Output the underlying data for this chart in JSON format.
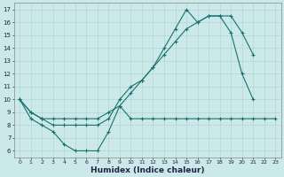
{
  "xlabel": "Humidex (Indice chaleur)",
  "xlim": [
    -0.5,
    23.5
  ],
  "ylim": [
    5.5,
    17.5
  ],
  "yticks": [
    6,
    7,
    8,
    9,
    10,
    11,
    12,
    13,
    14,
    15,
    16,
    17
  ],
  "xticks": [
    0,
    1,
    2,
    3,
    4,
    5,
    6,
    7,
    8,
    9,
    10,
    11,
    12,
    13,
    14,
    15,
    16,
    17,
    18,
    19,
    20,
    21,
    22,
    23
  ],
  "bg_color": "#cce9e9",
  "grid_color": "#aad0d0",
  "line_color": "#1a7070",
  "line1_x": [
    0,
    1,
    2,
    3,
    4,
    5,
    6,
    7,
    8,
    9,
    10,
    11,
    12,
    13,
    14,
    15,
    16,
    17,
    18,
    19,
    20,
    21
  ],
  "line1_y": [
    10.0,
    9.0,
    8.5,
    8.5,
    8.5,
    8.5,
    8.5,
    8.5,
    9.0,
    9.5,
    10.5,
    11.5,
    12.5,
    13.5,
    14.5,
    15.5,
    16.0,
    16.5,
    16.5,
    16.5,
    15.2,
    13.5
  ],
  "line2_x": [
    0,
    1,
    2,
    3,
    4,
    5,
    6,
    7,
    8,
    9,
    10,
    11,
    12,
    13,
    14,
    15,
    16,
    17,
    18,
    19,
    20,
    21,
    22,
    23
  ],
  "line2_y": [
    10.0,
    9.0,
    8.5,
    8.0,
    8.0,
    8.0,
    8.0,
    8.0,
    8.5,
    10.0,
    11.0,
    11.5,
    12.5,
    14.0,
    15.5,
    17.0,
    16.0,
    16.5,
    16.5,
    15.2,
    12.0,
    10.0,
    null,
    null
  ],
  "line3_x": [
    0,
    1,
    2,
    3,
    4,
    5,
    6,
    7,
    8,
    9,
    10,
    11,
    12,
    13,
    14,
    15,
    16,
    17,
    18,
    19,
    20,
    21,
    22,
    23
  ],
  "line3_y": [
    10.0,
    8.5,
    8.0,
    7.5,
    6.5,
    6.0,
    6.0,
    6.0,
    7.5,
    9.5,
    8.5,
    8.5,
    8.5,
    8.5,
    8.5,
    8.5,
    8.5,
    8.5,
    8.5,
    8.5,
    8.5,
    8.5,
    8.5,
    8.5
  ]
}
